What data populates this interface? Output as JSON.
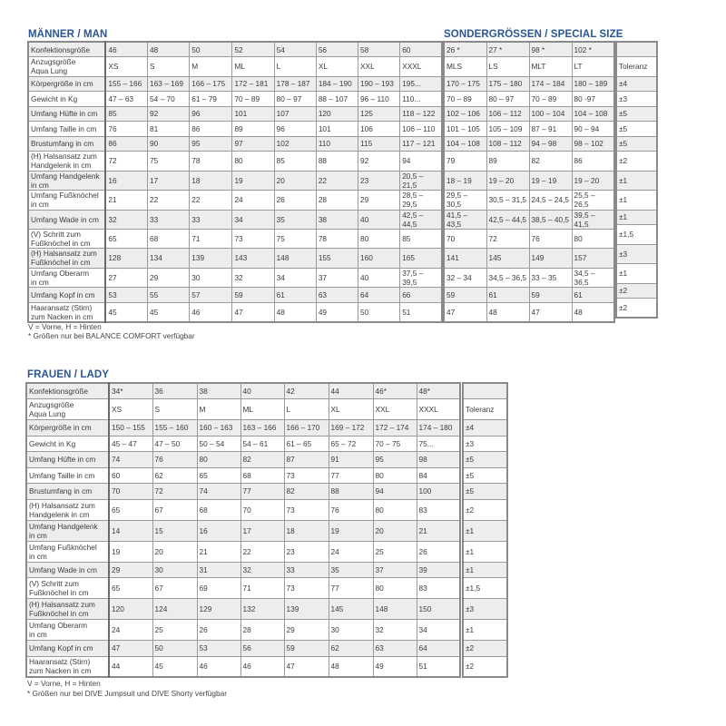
{
  "men": {
    "title": "MÄNNER / MAN",
    "special_title": "SONDERGRÖSSEN / SPECIAL SIZE",
    "rows": [
      {
        "label": "Konfektionsgröße",
        "values": [
          "46",
          "48",
          "50",
          "52",
          "54",
          "56",
          "58",
          "60"
        ],
        "special": [
          "26 *",
          "27 *",
          "98 *",
          "102 *"
        ],
        "tolerance": ""
      },
      {
        "label": "Anzugsgröße\nAqua Lung",
        "values": [
          "XS",
          "S",
          "M",
          "ML",
          "L",
          "XL",
          "XXL",
          "XXXL"
        ],
        "special": [
          "MLS",
          "LS",
          "MLT",
          "LT"
        ],
        "tolerance": "Toleranz"
      },
      {
        "label": "Körpergröße in cm",
        "values": [
          "155 – 166",
          "163 – 169",
          "166 – 175",
          "172 – 181",
          "178 – 187",
          "184 – 190",
          "190 – 193",
          "195..."
        ],
        "special": [
          "170 – 175",
          "175 – 180",
          "174 – 184",
          "180 – 189"
        ],
        "tolerance": "±4"
      },
      {
        "label": "Gewicht in Kg",
        "values": [
          "47 – 63",
          "54 – 70",
          "61 – 79",
          "70 – 89",
          "80 – 97",
          "88 – 107",
          "96 – 110",
          "110..."
        ],
        "special": [
          "70 – 89",
          "80 – 97",
          "70 – 89",
          "80 -97"
        ],
        "tolerance": "±3"
      },
      {
        "label": "Umfang Hüfte in cm",
        "values": [
          "85",
          "92",
          "96",
          "101",
          "107",
          "120",
          "125",
          "118 – 122"
        ],
        "special": [
          "102 – 106",
          "106 – 112",
          "100 – 104",
          "104 – 108"
        ],
        "tolerance": "±5"
      },
      {
        "label": "Umfang Taille in cm",
        "values": [
          "76",
          "81",
          "86",
          "89",
          "96",
          "101",
          "106",
          "106 – 110"
        ],
        "special": [
          "101 – 105",
          "105 – 109",
          "87 – 91",
          "90 – 94"
        ],
        "tolerance": "±5"
      },
      {
        "label": "Brustumfang in cm",
        "values": [
          "86",
          "90",
          "95",
          "97",
          "102",
          "110",
          "115",
          "117 – 121"
        ],
        "special": [
          "104 – 108",
          "108 – 112",
          "94 – 98",
          "98 – 102"
        ],
        "tolerance": "±5"
      },
      {
        "label": "(H) Halsansatz zum\nHandgelenk in cm",
        "values": [
          "72",
          "75",
          "78",
          "80",
          "85",
          "88",
          "92",
          "94"
        ],
        "special": [
          "79",
          "89",
          "82",
          "86"
        ],
        "tolerance": "±2"
      },
      {
        "label": "Umfang Handgelenk\nin cm",
        "values": [
          "16",
          "17",
          "18",
          "19",
          "20",
          "22",
          "23",
          "20,5 – 21,5"
        ],
        "special": [
          "18 – 19",
          "19 – 20",
          "19 – 19",
          "19 – 20"
        ],
        "tolerance": "±1"
      },
      {
        "label": "Umfang Fußknöchel\nin cm",
        "values": [
          "21",
          "22",
          "22",
          "24",
          "26",
          "28",
          "29",
          "28,5 – 29,5"
        ],
        "special": [
          "29,5 – 30,5",
          "30,5 – 31,5",
          "24,5 – 24,5",
          "25,5 – 26,5"
        ],
        "tolerance": "±1"
      },
      {
        "label": "Umfang Wade in cm",
        "values": [
          "32",
          "33",
          "33",
          "34",
          "35",
          "38",
          "40",
          "42,5 – 44,5"
        ],
        "special": [
          "41,5 – 43,5",
          "42,5 – 44,5",
          "38,5 – 40,5",
          "39,5 – 41,5"
        ],
        "tolerance": "±1"
      },
      {
        "label": "(V) Schritt zum\nFußknöchel in cm",
        "values": [
          "65",
          "68",
          "71",
          "73",
          "75",
          "78",
          "80",
          "85"
        ],
        "special": [
          "70",
          "72",
          "76",
          "80"
        ],
        "tolerance": "±1,5"
      },
      {
        "label": "(H) Halsansatz zum\nFußknöchel in cm",
        "values": [
          "128",
          "134",
          "139",
          "143",
          "148",
          "155",
          "160",
          "165"
        ],
        "special": [
          "141",
          "145",
          "149",
          "157"
        ],
        "tolerance": "±3"
      },
      {
        "label": "Umfang Oberarm\nin cm",
        "values": [
          "27",
          "29",
          "30",
          "32",
          "34",
          "37",
          "40",
          "37,5 – 39,5"
        ],
        "special": [
          "32 – 34",
          "34,5 – 36,5",
          "33 – 35",
          "34,5 – 36,5"
        ],
        "tolerance": "±1"
      },
      {
        "label": "Umfang Kopf in cm",
        "values": [
          "53",
          "55",
          "57",
          "59",
          "61",
          "63",
          "64",
          "66"
        ],
        "special": [
          "59",
          "61",
          "59",
          "61"
        ],
        "tolerance": "±2"
      },
      {
        "label": "Haaransatz (Stirn)\nzum Nacken in cm",
        "values": [
          "45",
          "45",
          "46",
          "47",
          "48",
          "49",
          "50",
          "51"
        ],
        "special": [
          "47",
          "48",
          "47",
          "48"
        ],
        "tolerance": "±2"
      }
    ],
    "note_legend": "V = Vorne, H = Hinten",
    "note_footnote": "* Größen nur bei BALANCE COMFORT verfügbar"
  },
  "women": {
    "title": "FRAUEN / LADY",
    "rows": [
      {
        "label": "Konfektionsgröße",
        "values": [
          "34*",
          "36",
          "38",
          "40",
          "42",
          "44",
          "46*",
          "48*"
        ],
        "tolerance": ""
      },
      {
        "label": "Anzugsgröße\nAqua Lung",
        "values": [
          "XS",
          "S",
          "M",
          "ML",
          "L",
          "XL",
          "XXL",
          "XXXL"
        ],
        "tolerance": "Toleranz"
      },
      {
        "label": "Körpergröße in cm",
        "values": [
          "150 – 155",
          "155 – 160",
          "160 – 163",
          "163 – 166",
          "166 – 170",
          "169 – 172",
          "172 – 174",
          "174 – 180"
        ],
        "tolerance": "±4"
      },
      {
        "label": "Gewicht in Kg",
        "values": [
          "45 – 47",
          "47 – 50",
          "50 – 54",
          "54 – 61",
          "61 – 65",
          "65 – 72",
          "70 – 75",
          "75..."
        ],
        "tolerance": "±3"
      },
      {
        "label": "Umfang Hüfte in cm",
        "values": [
          "74",
          "76",
          "80",
          "82",
          "87",
          "91",
          "95",
          "98"
        ],
        "tolerance": "±5"
      },
      {
        "label": "Umfang Taille in cm",
        "values": [
          "60",
          "62",
          "65",
          "68",
          "73",
          "77",
          "80",
          "84"
        ],
        "tolerance": "±5"
      },
      {
        "label": "Brustumfang in cm",
        "values": [
          "70",
          "72",
          "74",
          "77",
          "82",
          "88",
          "94",
          "100"
        ],
        "tolerance": "±5"
      },
      {
        "label": "(H) Halsansatz zum\nHandgelenk in cm",
        "values": [
          "65",
          "67",
          "68",
          "70",
          "73",
          "76",
          "80",
          "83"
        ],
        "tolerance": "±2"
      },
      {
        "label": "Umfang Handgelenk\nin cm",
        "values": [
          "14",
          "15",
          "16",
          "17",
          "18",
          "19",
          "20",
          "21"
        ],
        "tolerance": "±1"
      },
      {
        "label": "Umfang Fußknöchel\nin cm",
        "values": [
          "19",
          "20",
          "21",
          "22",
          "23",
          "24",
          "25",
          "26"
        ],
        "tolerance": "±1"
      },
      {
        "label": "Umfang Wade in cm",
        "values": [
          "29",
          "30",
          "31",
          "32",
          "33",
          "35",
          "37",
          "39"
        ],
        "tolerance": "±1"
      },
      {
        "label": "(V) Schritt zum\nFußknöchel in cm",
        "values": [
          "65",
          "67",
          "69",
          "71",
          "73",
          "77",
          "80",
          "83"
        ],
        "tolerance": "±1,5"
      },
      {
        "label": "(H) Halsansatz zum\nFußknöchel in cm",
        "values": [
          "120",
          "124",
          "129",
          "132",
          "139",
          "145",
          "148",
          "150"
        ],
        "tolerance": "±3"
      },
      {
        "label": "Umfang Oberarm\nin cm",
        "values": [
          "24",
          "25",
          "26",
          "28",
          "29",
          "30",
          "32",
          "34"
        ],
        "tolerance": "±1"
      },
      {
        "label": "Umfang Kopf in cm",
        "values": [
          "47",
          "50",
          "53",
          "56",
          "59",
          "62",
          "63",
          "64"
        ],
        "tolerance": "±2"
      },
      {
        "label": "Haaransatz (Stirn)\nzum Nacken in cm",
        "values": [
          "44",
          "45",
          "46",
          "46",
          "47",
          "48",
          "49",
          "51"
        ],
        "tolerance": "±2"
      }
    ],
    "note_legend": "V = Vorne, H = Hinten",
    "note_footnote": "* Größen nur bei DIVE Jumpsuit und DIVE Shorty verfügbar"
  },
  "colors": {
    "heading": "#2a5595",
    "row_alt": "#ededed",
    "border": "#9a9a9a"
  }
}
